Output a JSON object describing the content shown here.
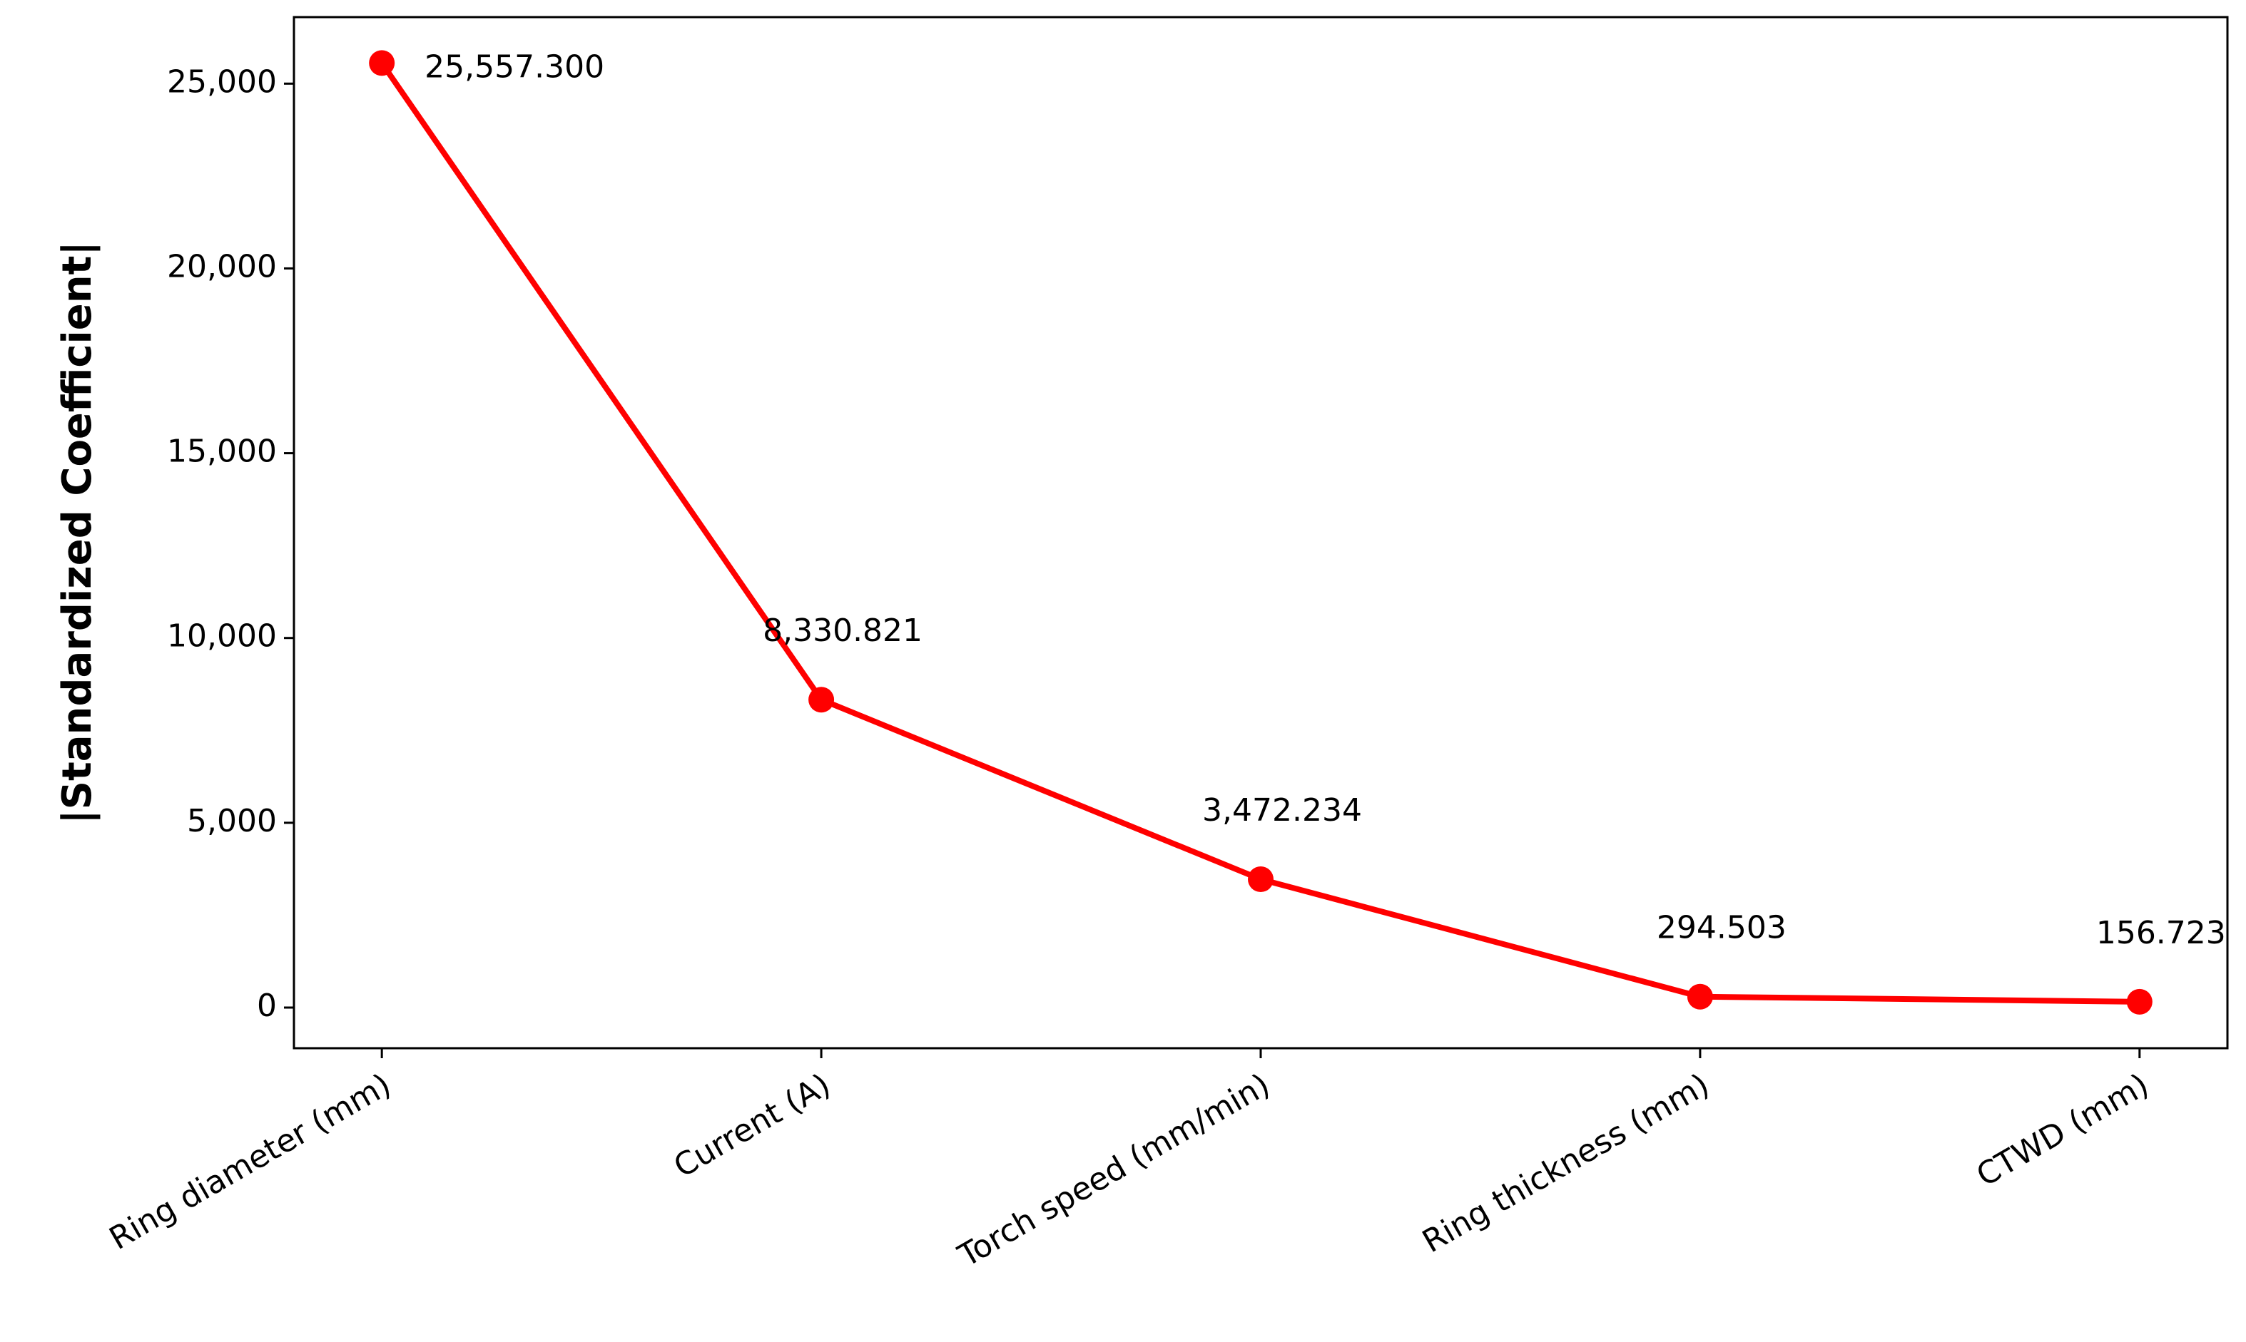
{
  "chart_data": {
    "type": "line",
    "ylabel": "|Standardized Coefficient|",
    "categories": [
      "Ring diameter (mm)",
      "Current (A)",
      "Torch speed (mm/min)",
      "Ring thickness (mm)",
      "CTWD (mm)"
    ],
    "values": [
      25557.3,
      8330.821,
      3472.234,
      294.503,
      156.723
    ],
    "value_labels": [
      "25,557.300",
      "8,330.821",
      "3,472.234",
      "294.503",
      "156.723"
    ],
    "color": "#ff0000",
    "ylim": [
      -1100,
      26800
    ],
    "yticks": [
      0,
      {
        "value": 5000,
        "label": "5,000"
      },
      {
        "value": 10000,
        "label": "10,000"
      },
      {
        "value": 15000,
        "label": "15,000"
      },
      {
        "value": 20000,
        "label": "20,000"
      },
      {
        "value": 25000,
        "label": "25,000"
      }
    ]
  }
}
